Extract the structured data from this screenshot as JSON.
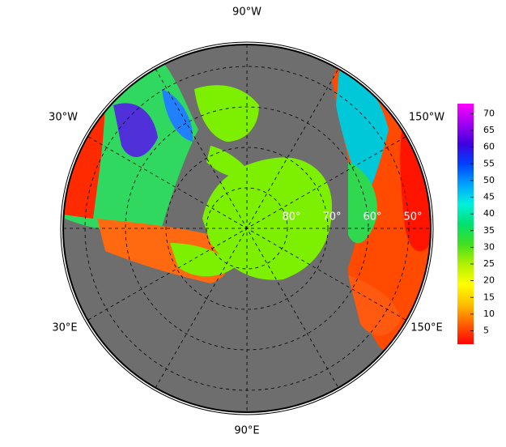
{
  "map": {
    "longitude_labels": [
      "90°W",
      "30°W",
      "150°W",
      "30°E",
      "150°E",
      "90°E"
    ],
    "latitude_labels": [
      "80°",
      "70°",
      "60°",
      "50°"
    ],
    "colorbar": {
      "range": [
        1,
        73
      ],
      "ticks": [
        5,
        10,
        15,
        20,
        25,
        30,
        35,
        40,
        45,
        50,
        55,
        60,
        65,
        70
      ],
      "colors": [
        "#ff0000",
        "#ff6000",
        "#ffc000",
        "#ffff00",
        "#b0f000",
        "#40e020",
        "#00e070",
        "#00f0e0",
        "#00a0ff",
        "#0040ff",
        "#4000e0",
        "#a000f0",
        "#ff00ff"
      ]
    }
  }
}
